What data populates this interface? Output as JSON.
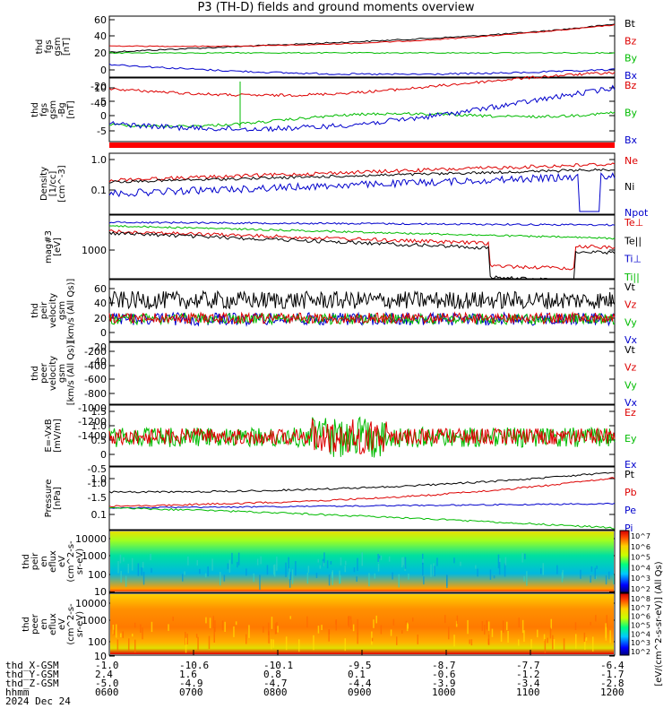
{
  "title": "P3 (TH-D) fields and ground moments overview",
  "date_label": "2024 Dec 24",
  "chart_data": {
    "type": "line",
    "x_range": [
      "0600",
      "1200"
    ],
    "time_ticks": [
      "0600",
      "0700",
      "0800",
      "0900",
      "1000",
      "1100",
      "1200"
    ],
    "panels": [
      {
        "id": "fgs_gsm",
        "ylabel": [
          "thd",
          "fgs",
          "gsm",
          "[nT]"
        ],
        "yticks": [
          "60",
          "40",
          "20",
          "0",
          "-20",
          "-40"
        ],
        "ylim": [
          -45,
          65
        ],
        "legend": [
          {
            "text": "Bt",
            "color": "#000000"
          },
          {
            "text": "Bz",
            "color": "#dd0000"
          },
          {
            "text": "By",
            "color": "#00bb00"
          },
          {
            "text": "Bx",
            "color": "#0000cc"
          }
        ]
      },
      {
        "id": "fgs_dsl",
        "ylabel": [
          "thd",
          "fgs",
          "gsm",
          "-Bg",
          "[nT]"
        ],
        "yticks": [
          "10",
          "5",
          "0",
          "-5"
        ],
        "ylim": [
          -8,
          12
        ],
        "legend": [
          {
            "text": "Bz",
            "color": "#dd0000"
          },
          {
            "text": "By",
            "color": "#00bb00"
          },
          {
            "text": "Bx",
            "color": "#0000cc"
          }
        ]
      },
      {
        "id": "density",
        "ylabel": [
          "Density",
          "[1/cc]",
          "[cm^-3]"
        ],
        "yticks": [
          "1.0",
          "0.1"
        ],
        "ylim": [
          0.01,
          1.5
        ],
        "log": true,
        "legend": [
          {
            "text": "Ne",
            "color": "#dd0000"
          },
          {
            "text": "Ni",
            "color": "#000000"
          },
          {
            "text": "Npot",
            "color": "#0000cc"
          }
        ]
      },
      {
        "id": "temp",
        "ylabel": [
          "mag#3",
          "[eV]"
        ],
        "yticks": [
          "1000"
        ],
        "ylim": [
          100,
          20000
        ],
        "log": true,
        "legend": [
          {
            "text": "Te⊥",
            "color": "#dd0000"
          },
          {
            "text": "Te||",
            "color": "#000000"
          },
          {
            "text": "Ti⊥",
            "color": "#0000cc"
          },
          {
            "text": "Ti||",
            "color": "#00bb00"
          }
        ]
      },
      {
        "id": "peir_vel",
        "ylabel": [
          "thd",
          "peir",
          "velocity",
          "gsm",
          "[km/s (All Qs)]"
        ],
        "yticks": [
          "60",
          "40",
          "20",
          "0",
          "-20",
          "-40"
        ],
        "ylim": [
          -45,
          75
        ],
        "legend": [
          {
            "text": "Vt",
            "color": "#000000"
          },
          {
            "text": "Vz",
            "color": "#dd0000"
          },
          {
            "text": "Vy",
            "color": "#00bb00"
          },
          {
            "text": "Vx",
            "color": "#0000cc"
          }
        ]
      },
      {
        "id": "peer_vel",
        "ylabel": [
          "thd",
          "peer",
          "velocity",
          "gsm",
          "[km/s (All Qs)]"
        ],
        "yticks": [
          "-200",
          "-400",
          "-600",
          "-800",
          "-1000",
          "-1200",
          "-1400"
        ],
        "ylim": [
          -1500,
          -100
        ],
        "legend": [
          {
            "text": "Vt",
            "color": "#000000"
          },
          {
            "text": "Vz",
            "color": "#dd0000"
          },
          {
            "text": "Vy",
            "color": "#00bb00"
          },
          {
            "text": "Vx",
            "color": "#0000cc"
          }
        ]
      },
      {
        "id": "efield",
        "ylabel": [
          "E=-VxB",
          "[mV/m]"
        ],
        "yticks": [
          "1.5",
          "1.0",
          "0.5",
          "0",
          "-0.5",
          "-1.0",
          "-1.5"
        ],
        "ylim": [
          -1.7,
          1.7
        ],
        "legend": [
          {
            "text": "Ez",
            "color": "#dd0000"
          },
          {
            "text": "Ey",
            "color": "#00bb00"
          },
          {
            "text": "Ex",
            "color": "#0000cc"
          }
        ]
      },
      {
        "id": "pressure",
        "ylabel": [
          "Pressure",
          "[nPa]"
        ],
        "yticks": [
          "1.0",
          "0.1"
        ],
        "ylim": [
          0.03,
          1.6
        ],
        "log": true,
        "legend": [
          {
            "text": "Pt",
            "color": "#000000"
          },
          {
            "text": "Pb",
            "color": "#dd0000"
          },
          {
            "text": "Pe",
            "color": "#0000cc"
          },
          {
            "text": "Pi",
            "color": "#0000cc"
          }
        ]
      },
      {
        "id": "peir_spec",
        "type": "spectrogram",
        "ylabel": [
          "thd",
          "peir",
          "en",
          "eflux",
          "eV",
          "(cm^2-s-",
          "sr-eV)"
        ],
        "yticks": [
          "10000",
          "1000",
          "100",
          "10"
        ],
        "colorbar": {
          "ticks": [
            "10^7",
            "10^6",
            "10^5",
            "10^4",
            "10^3",
            "10^2"
          ]
        }
      },
      {
        "id": "peer_spec",
        "type": "spectrogram",
        "ylabel": [
          "thd",
          "peer",
          "en",
          "eflux",
          "eV",
          "(cm^2-s-",
          "sr-eV)"
        ],
        "yticks": [
          "10000",
          "1000",
          "100",
          "10"
        ],
        "colorbar": {
          "ticks": [
            "10^8",
            "10^7",
            "10^6",
            "10^5",
            "10^4",
            "10^3",
            "10^2"
          ]
        }
      }
    ],
    "colorbar_label": "[eV/(cm^2-s-sr-eV)] (All Qs)",
    "position_rows": [
      {
        "label": "thd_X-GSM",
        "values": [
          "-1.0",
          "-10.6",
          "-10.1",
          "-9.5",
          "-8.7",
          "-7.7",
          "-6.4"
        ]
      },
      {
        "label": "thd_Y-GSM",
        "values": [
          "2.4",
          "1.6",
          "0.8",
          "0.1",
          "-0.6",
          "-1.2",
          "-1.7"
        ]
      },
      {
        "label": "thd_Z-GSM",
        "values": [
          "-5.0",
          "-4.9",
          "-4.7",
          "-4.4",
          "-3.9",
          "-3.4",
          "-2.8"
        ]
      },
      {
        "label": "hhmm",
        "values": [
          "0600",
          "0700",
          "0800",
          "0900",
          "1000",
          "1100",
          "1200"
        ]
      }
    ]
  }
}
